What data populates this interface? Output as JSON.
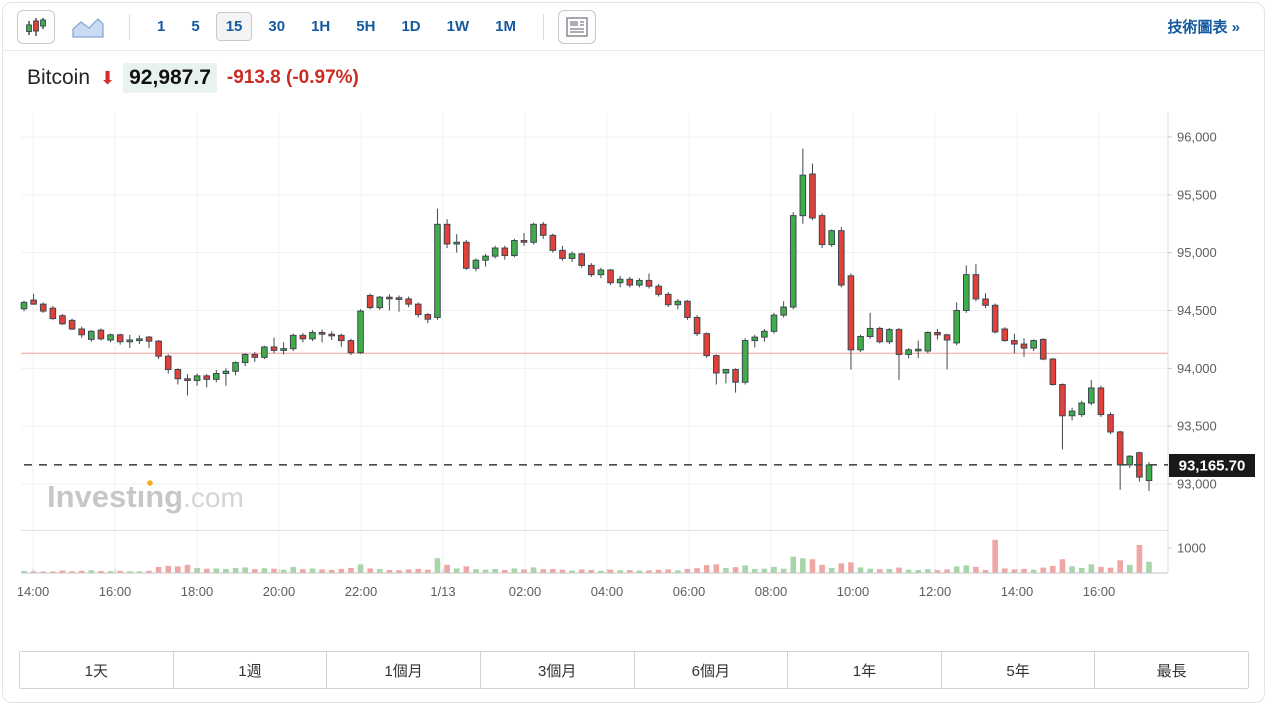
{
  "toolbar": {
    "chart_type": [
      {
        "name": "candlestick-chart-type",
        "active": true
      },
      {
        "name": "line-chart-type",
        "active": false
      }
    ],
    "timeframes": [
      "1",
      "5",
      "15",
      "30",
      "1H",
      "5H",
      "1D",
      "1W",
      "1M"
    ],
    "selected_timeframe": "15",
    "tech_link_label": "技術圖表",
    "tech_link_chevron": "»"
  },
  "header": {
    "symbol": "Bitcoin",
    "direction": "down",
    "arrow": "⬇",
    "price": "92,987.7",
    "change": "-913.8",
    "change_pct": "(-0.97%)"
  },
  "chart": {
    "watermark_brand": "Invest",
    "watermark_i": "ı",
    "watermark_end": "ng",
    "watermark_tld": ".com",
    "y_axis_labels": [
      "96,000",
      "95,500",
      "95,000",
      "94,500",
      "94,000",
      "93,500",
      "93,000"
    ],
    "x_axis_labels": [
      "14:00",
      "16:00",
      "18:00",
      "20:00",
      "22:00",
      "1/13",
      "02:00",
      "04:00",
      "06:00",
      "08:00",
      "10:00",
      "12:00",
      "14:00",
      "16:00"
    ],
    "volume_axis_label": "1000",
    "last_price_label": "93,165.70",
    "last_price_value": 93165.7,
    "ref_line_price": 94130,
    "price_axis_top": 96000,
    "price_axis_bottom": 93000
  },
  "colors": {
    "up": "#3fae49",
    "down": "#e3403a",
    "candle_outline": "#3d4852",
    "vol_up": "#a9d5ab",
    "vol_down": "#eea7a4",
    "ref_line": "#f2a09e",
    "dashed_line": "#4b4b4b",
    "grid": "#f1f1f1",
    "axis_text": "#5b5f63",
    "blue": "#15599f"
  },
  "chart_data": {
    "type": "candlestick",
    "interval": "15m",
    "series_note": "o,h,l,c,v per 15-minute candle, 1/12 13:45 through 1/13 17:15",
    "candles": [
      [
        94515,
        94585,
        94495,
        94570,
        60
      ],
      [
        94590,
        94645,
        94550,
        94555,
        45
      ],
      [
        94555,
        94570,
        94480,
        94495,
        40
      ],
      [
        94520,
        94540,
        94420,
        94430,
        35
      ],
      [
        94455,
        94470,
        94375,
        94385,
        80
      ],
      [
        94415,
        94430,
        94330,
        94340,
        50
      ],
      [
        94340,
        94360,
        94265,
        94290,
        70
      ],
      [
        94250,
        94330,
        94230,
        94320,
        90
      ],
      [
        94330,
        94345,
        94240,
        94255,
        60
      ],
      [
        94245,
        94300,
        94225,
        94290,
        55
      ],
      [
        94290,
        94300,
        94205,
        94230,
        70
      ],
      [
        94230,
        94290,
        94175,
        94245,
        50
      ],
      [
        94240,
        94285,
        94210,
        94255,
        45
      ],
      [
        94270,
        94280,
        94175,
        94235,
        65
      ],
      [
        94235,
        94245,
        94080,
        94105,
        220
      ],
      [
        94105,
        94120,
        93955,
        93990,
        260
      ],
      [
        93990,
        94000,
        93860,
        93910,
        240
      ],
      [
        93910,
        93950,
        93765,
        93895,
        300
      ],
      [
        93895,
        93955,
        93850,
        93935,
        180
      ],
      [
        93935,
        93950,
        93835,
        93905,
        150
      ],
      [
        93905,
        93985,
        93880,
        93955,
        160
      ],
      [
        93955,
        94000,
        93850,
        93975,
        140
      ],
      [
        93975,
        94060,
        93940,
        94050,
        180
      ],
      [
        94050,
        94130,
        94020,
        94120,
        200
      ],
      [
        94120,
        94140,
        94055,
        94095,
        130
      ],
      [
        94095,
        94195,
        94080,
        94185,
        170
      ],
      [
        94185,
        94265,
        94130,
        94155,
        150
      ],
      [
        94155,
        94225,
        94120,
        94170,
        110
      ],
      [
        94170,
        94300,
        94150,
        94285,
        220
      ],
      [
        94285,
        94305,
        94225,
        94255,
        130
      ],
      [
        94255,
        94330,
        94235,
        94310,
        160
      ],
      [
        94310,
        94335,
        94225,
        94295,
        120
      ],
      [
        94295,
        94320,
        94245,
        94285,
        100
      ],
      [
        94285,
        94300,
        94185,
        94240,
        140
      ],
      [
        94240,
        94255,
        94115,
        94135,
        180
      ],
      [
        94135,
        94510,
        94125,
        94495,
        320
      ],
      [
        94630,
        94645,
        94510,
        94525,
        160
      ],
      [
        94525,
        94625,
        94505,
        94615,
        140
      ],
      [
        94615,
        94640,
        94500,
        94610,
        100
      ],
      [
        94610,
        94630,
        94490,
        94600,
        90
      ],
      [
        94600,
        94620,
        94530,
        94555,
        120
      ],
      [
        94555,
        94570,
        94440,
        94465,
        140
      ],
      [
        94465,
        94480,
        94390,
        94425,
        110
      ],
      [
        94440,
        95380,
        94420,
        95245,
        560
      ],
      [
        95245,
        95290,
        95040,
        95075,
        300
      ],
      [
        95075,
        95160,
        95000,
        95090,
        160
      ],
      [
        95090,
        95110,
        94850,
        94865,
        240
      ],
      [
        94865,
        94950,
        94840,
        94935,
        130
      ],
      [
        94935,
        94990,
        94880,
        94970,
        110
      ],
      [
        94970,
        95060,
        94950,
        95040,
        140
      ],
      [
        95040,
        95060,
        94940,
        94975,
        100
      ],
      [
        94975,
        95120,
        94960,
        95105,
        160
      ],
      [
        95105,
        95170,
        95060,
        95090,
        120
      ],
      [
        95090,
        95260,
        95070,
        95245,
        200
      ],
      [
        95245,
        95265,
        95120,
        95150,
        130
      ],
      [
        95150,
        95165,
        95000,
        95020,
        140
      ],
      [
        95020,
        95060,
        94930,
        94950,
        110
      ],
      [
        94950,
        95010,
        94920,
        94990,
        80
      ],
      [
        94990,
        95000,
        94870,
        94890,
        120
      ],
      [
        94890,
        94910,
        94790,
        94810,
        100
      ],
      [
        94810,
        94870,
        94780,
        94850,
        70
      ],
      [
        94850,
        94860,
        94720,
        94740,
        110
      ],
      [
        94740,
        94800,
        94700,
        94770,
        90
      ],
      [
        94770,
        94790,
        94700,
        94720,
        95
      ],
      [
        94720,
        94780,
        94700,
        94760,
        75
      ],
      [
        94760,
        94820,
        94690,
        94710,
        85
      ],
      [
        94710,
        94730,
        94620,
        94640,
        105
      ],
      [
        94640,
        94660,
        94530,
        94550,
        120
      ],
      [
        94550,
        94600,
        94510,
        94580,
        85
      ],
      [
        94580,
        94590,
        94420,
        94440,
        140
      ],
      [
        94440,
        94460,
        94280,
        94300,
        170
      ],
      [
        94300,
        94310,
        94090,
        94110,
        290
      ],
      [
        94110,
        94120,
        93860,
        93960,
        320
      ],
      [
        93960,
        93995,
        93870,
        93990,
        180
      ],
      [
        93990,
        94000,
        93790,
        93880,
        210
      ],
      [
        93880,
        94260,
        93860,
        94240,
        280
      ],
      [
        94240,
        94290,
        94180,
        94270,
        140
      ],
      [
        94270,
        94340,
        94230,
        94320,
        150
      ],
      [
        94320,
        94480,
        94300,
        94460,
        220
      ],
      [
        94460,
        94580,
        94440,
        94530,
        150
      ],
      [
        94530,
        95350,
        94510,
        95320,
        620
      ],
      [
        95320,
        95900,
        95250,
        95670,
        560
      ],
      [
        95680,
        95770,
        95280,
        95300,
        520
      ],
      [
        95320,
        95340,
        95040,
        95070,
        300
      ],
      [
        95070,
        95200,
        95050,
        95190,
        180
      ],
      [
        95190,
        95220,
        94700,
        94720,
        360
      ],
      [
        94800,
        94820,
        93990,
        94160,
        400
      ],
      [
        94160,
        94290,
        94140,
        94275,
        200
      ],
      [
        94275,
        94480,
        94255,
        94345,
        150
      ],
      [
        94345,
        94360,
        94215,
        94230,
        130
      ],
      [
        94230,
        94350,
        94210,
        94335,
        140
      ],
      [
        94335,
        94350,
        93900,
        94120,
        190
      ],
      [
        94120,
        94175,
        94085,
        94160,
        110
      ],
      [
        94160,
        94240,
        94090,
        94165,
        100
      ],
      [
        94150,
        94320,
        94130,
        94310,
        130
      ],
      [
        94310,
        94340,
        94250,
        94290,
        90
      ],
      [
        94290,
        94300,
        93990,
        94245,
        120
      ],
      [
        94220,
        94570,
        94200,
        94500,
        240
      ],
      [
        94500,
        94890,
        94480,
        94810,
        280
      ],
      [
        94810,
        94900,
        94580,
        94600,
        220
      ],
      [
        94600,
        94650,
        94520,
        94545,
        100
      ],
      [
        94545,
        94560,
        94300,
        94315,
        1280
      ],
      [
        94340,
        94355,
        94230,
        94240,
        160
      ],
      [
        94240,
        94300,
        94130,
        94210,
        120
      ],
      [
        94210,
        94260,
        94100,
        94175,
        140
      ],
      [
        94175,
        94250,
        94150,
        94240,
        110
      ],
      [
        94250,
        94260,
        94070,
        94080,
        190
      ],
      [
        94080,
        94090,
        93850,
        93860,
        260
      ],
      [
        93860,
        93870,
        93300,
        93590,
        520
      ],
      [
        93590,
        93660,
        93550,
        93630,
        240
      ],
      [
        93600,
        93720,
        93580,
        93700,
        180
      ],
      [
        93700,
        93900,
        93680,
        93830,
        320
      ],
      [
        93830,
        93850,
        93580,
        93600,
        220
      ],
      [
        93600,
        93620,
        93430,
        93450,
        190
      ],
      [
        93450,
        93460,
        92950,
        93165,
        480
      ],
      [
        93165,
        93250,
        93140,
        93240,
        300
      ],
      [
        93270,
        93280,
        93020,
        93060,
        1080
      ],
      [
        93030,
        93190,
        92940,
        93165,
        420
      ]
    ]
  },
  "period_buttons": [
    "1天",
    "1週",
    "1個月",
    "3個月",
    "6個月",
    "1年",
    "5年",
    "最長"
  ]
}
